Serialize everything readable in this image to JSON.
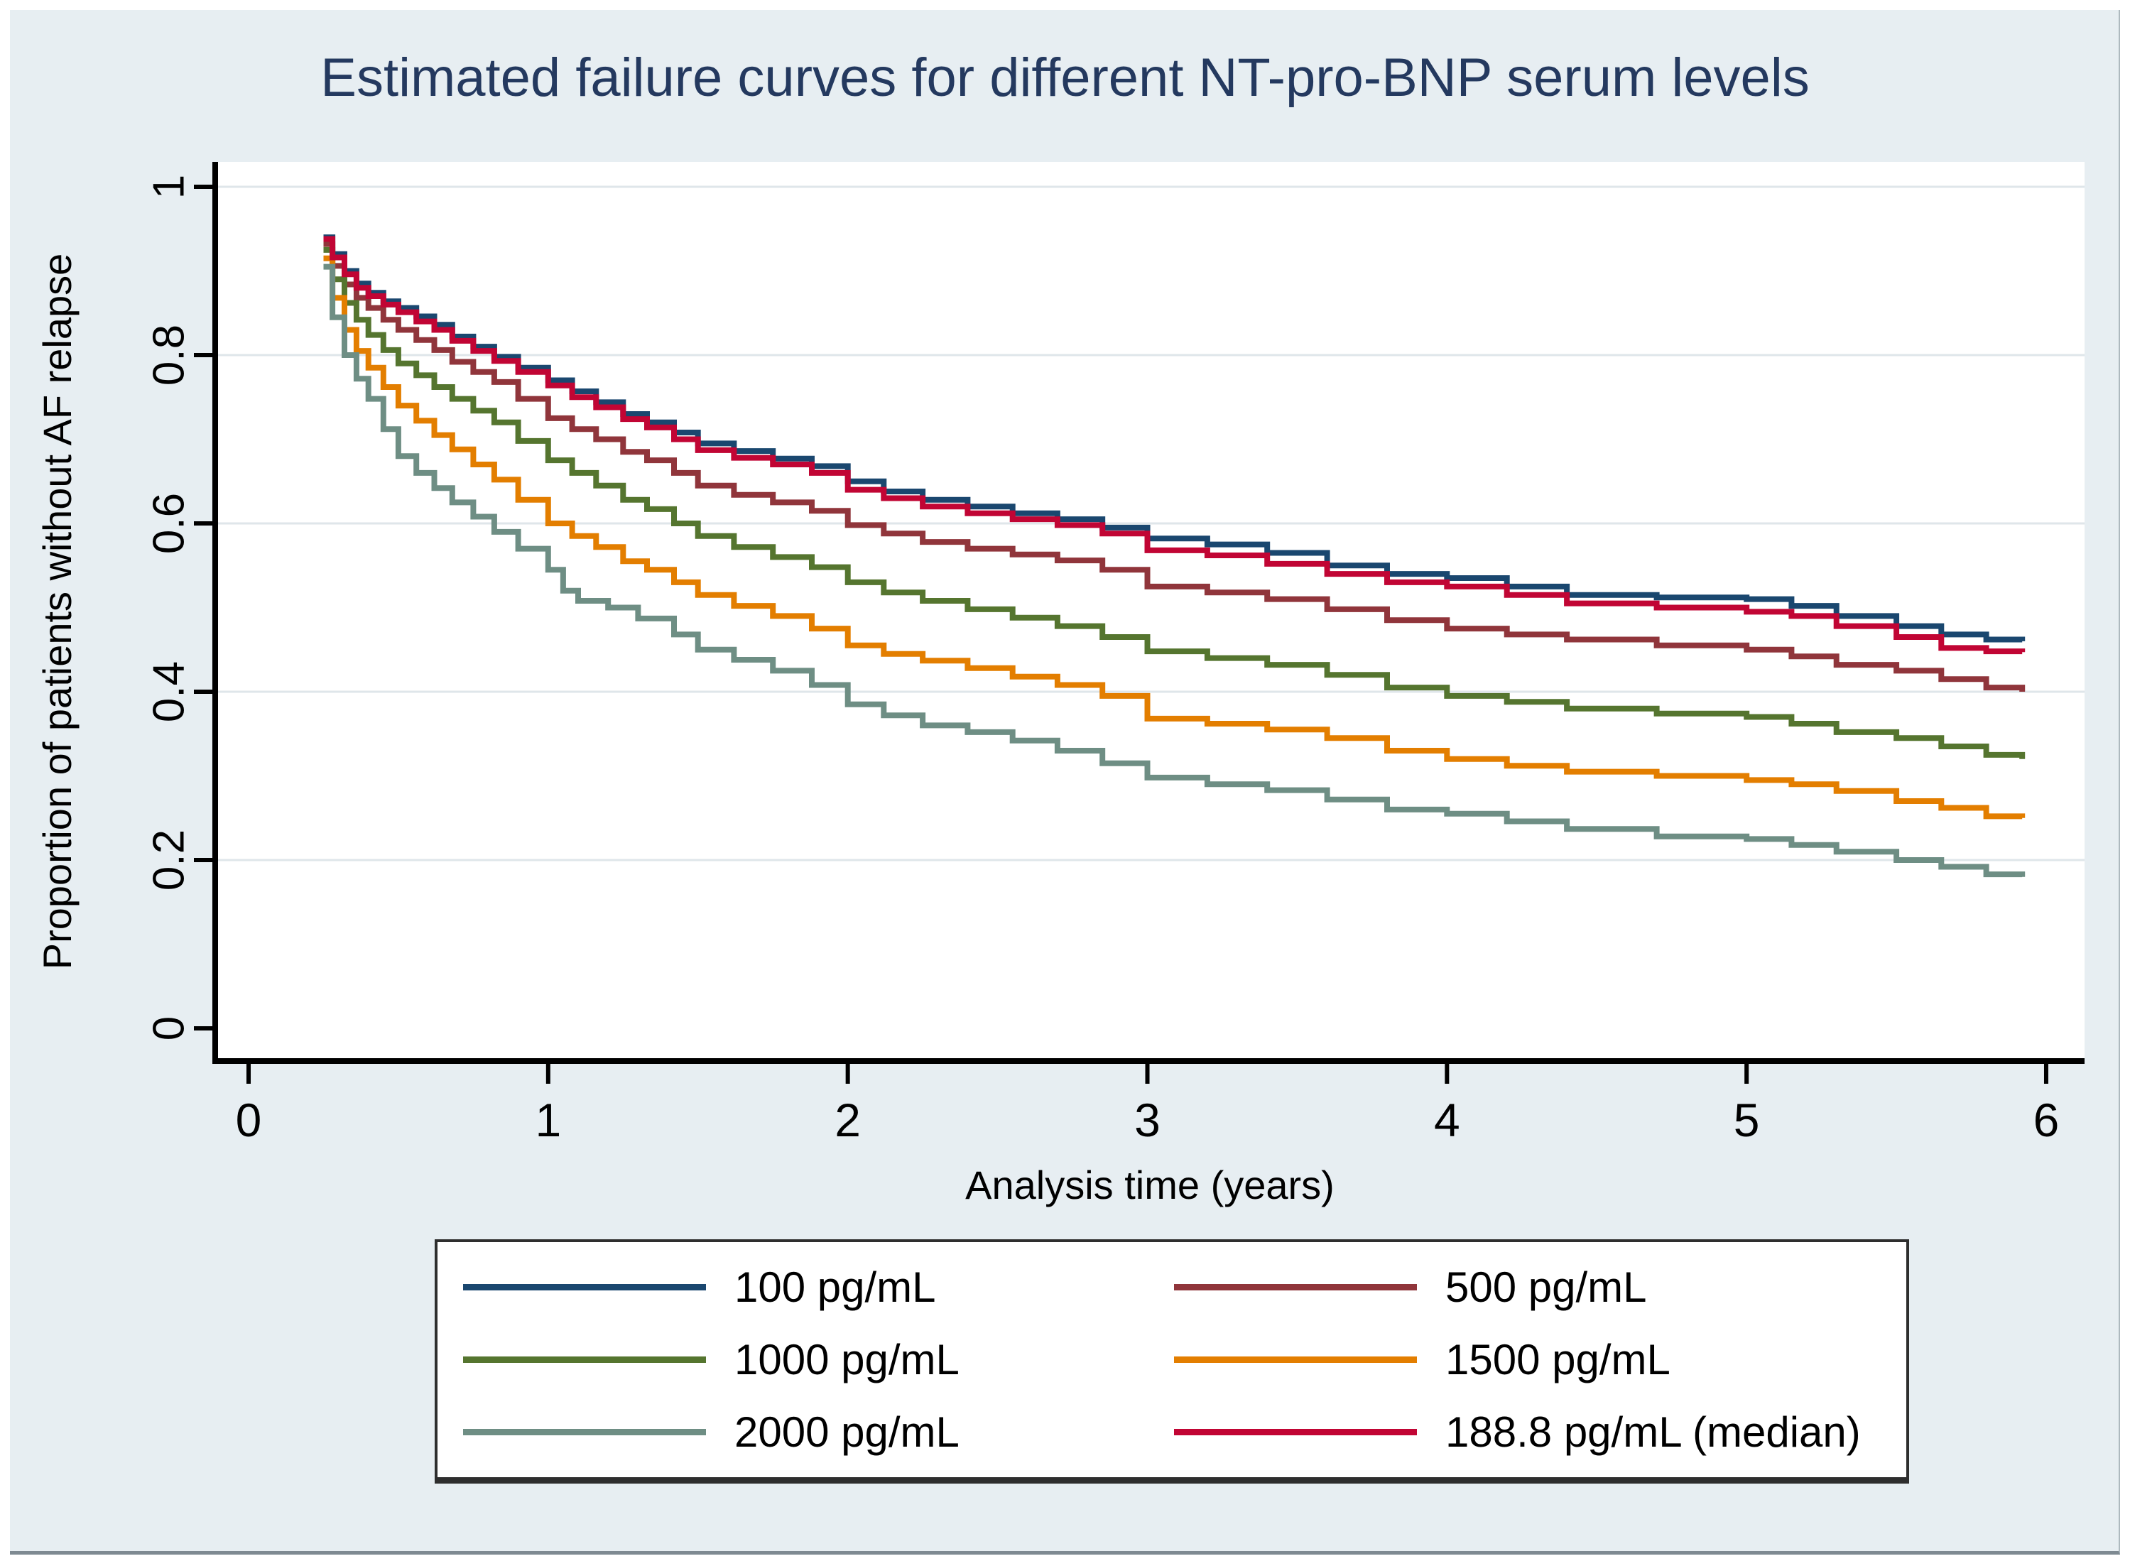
{
  "figure": {
    "background_color": "#e7eef2",
    "outer_border_color": "#7e8a92"
  },
  "chart_data": {
    "type": "line",
    "subtype": "kaplan-meier-step",
    "title": "Estimated failure curves for different NT-pro-BNP serum levels",
    "title_color": "#24395f",
    "xlabel": "Analysis time (years)",
    "ylabel": "Proportion of patients without AF relapse",
    "xlim": [
      0,
      6
    ],
    "ylim": [
      0,
      1
    ],
    "xticks": [
      0,
      1,
      2,
      3,
      4,
      5,
      6
    ],
    "yticks": [
      0,
      0.2,
      0.4,
      0.6,
      0.8,
      1
    ],
    "ytick_labels": [
      "0",
      "0.2",
      "0.4",
      "0.6",
      "0.8",
      "1"
    ],
    "grid": "horizontal",
    "gridline_values": [
      0.2,
      0.4,
      0.6,
      0.8,
      1
    ],
    "grid_color": "#dfe6ea",
    "axis_color": "#000000",
    "plot_bg": "#ffffff",
    "legend_position": "bottom-box",
    "legend_columns": 2,
    "series": [
      {
        "name": "100 pg/mL",
        "color": "#1a476f",
        "points": [
          [
            0.25,
            0.94
          ],
          [
            0.28,
            0.92
          ],
          [
            0.32,
            0.9
          ],
          [
            0.36,
            0.885
          ],
          [
            0.4,
            0.874
          ],
          [
            0.45,
            0.864
          ],
          [
            0.5,
            0.856
          ],
          [
            0.56,
            0.846
          ],
          [
            0.62,
            0.836
          ],
          [
            0.68,
            0.822
          ],
          [
            0.75,
            0.81
          ],
          [
            0.82,
            0.798
          ],
          [
            0.9,
            0.785
          ],
          [
            1.0,
            0.77
          ],
          [
            1.08,
            0.757
          ],
          [
            1.16,
            0.744
          ],
          [
            1.25,
            0.73
          ],
          [
            1.33,
            0.72
          ],
          [
            1.42,
            0.708
          ],
          [
            1.5,
            0.695
          ],
          [
            1.62,
            0.686
          ],
          [
            1.75,
            0.677
          ],
          [
            1.88,
            0.668
          ],
          [
            2.0,
            0.65
          ],
          [
            2.12,
            0.638
          ],
          [
            2.25,
            0.628
          ],
          [
            2.4,
            0.62
          ],
          [
            2.55,
            0.612
          ],
          [
            2.7,
            0.605
          ],
          [
            2.85,
            0.595
          ],
          [
            3.0,
            0.582
          ],
          [
            3.2,
            0.575
          ],
          [
            3.4,
            0.565
          ],
          [
            3.6,
            0.55
          ],
          [
            3.8,
            0.54
          ],
          [
            4.0,
            0.535
          ],
          [
            4.2,
            0.525
          ],
          [
            4.4,
            0.515
          ],
          [
            4.7,
            0.512
          ],
          [
            5.0,
            0.51
          ],
          [
            5.15,
            0.502
          ],
          [
            5.3,
            0.49
          ],
          [
            5.5,
            0.478
          ],
          [
            5.65,
            0.468
          ],
          [
            5.8,
            0.462
          ],
          [
            5.92,
            0.46
          ]
        ]
      },
      {
        "name": "500 pg/mL",
        "color": "#90353b",
        "points": [
          [
            0.25,
            0.932
          ],
          [
            0.28,
            0.906
          ],
          [
            0.32,
            0.884
          ],
          [
            0.36,
            0.868
          ],
          [
            0.4,
            0.856
          ],
          [
            0.45,
            0.842
          ],
          [
            0.5,
            0.83
          ],
          [
            0.56,
            0.818
          ],
          [
            0.62,
            0.806
          ],
          [
            0.68,
            0.792
          ],
          [
            0.75,
            0.78
          ],
          [
            0.82,
            0.768
          ],
          [
            0.9,
            0.748
          ],
          [
            1.0,
            0.725
          ],
          [
            1.08,
            0.712
          ],
          [
            1.16,
            0.7
          ],
          [
            1.25,
            0.685
          ],
          [
            1.33,
            0.675
          ],
          [
            1.42,
            0.66
          ],
          [
            1.5,
            0.645
          ],
          [
            1.62,
            0.634
          ],
          [
            1.75,
            0.625
          ],
          [
            1.88,
            0.615
          ],
          [
            2.0,
            0.598
          ],
          [
            2.12,
            0.588
          ],
          [
            2.25,
            0.578
          ],
          [
            2.4,
            0.57
          ],
          [
            2.55,
            0.563
          ],
          [
            2.7,
            0.556
          ],
          [
            2.85,
            0.545
          ],
          [
            3.0,
            0.525
          ],
          [
            3.2,
            0.518
          ],
          [
            3.4,
            0.51
          ],
          [
            3.6,
            0.498
          ],
          [
            3.8,
            0.485
          ],
          [
            4.0,
            0.475
          ],
          [
            4.2,
            0.468
          ],
          [
            4.4,
            0.462
          ],
          [
            4.7,
            0.455
          ],
          [
            5.0,
            0.45
          ],
          [
            5.15,
            0.442
          ],
          [
            5.3,
            0.432
          ],
          [
            5.5,
            0.425
          ],
          [
            5.65,
            0.415
          ],
          [
            5.8,
            0.405
          ],
          [
            5.92,
            0.4
          ]
        ]
      },
      {
        "name": "1000 pg/mL",
        "color": "#55752f",
        "points": [
          [
            0.25,
            0.925
          ],
          [
            0.28,
            0.89
          ],
          [
            0.32,
            0.862
          ],
          [
            0.36,
            0.842
          ],
          [
            0.4,
            0.824
          ],
          [
            0.45,
            0.806
          ],
          [
            0.5,
            0.79
          ],
          [
            0.56,
            0.776
          ],
          [
            0.62,
            0.762
          ],
          [
            0.68,
            0.748
          ],
          [
            0.75,
            0.734
          ],
          [
            0.82,
            0.72
          ],
          [
            0.9,
            0.698
          ],
          [
            1.0,
            0.675
          ],
          [
            1.08,
            0.66
          ],
          [
            1.16,
            0.645
          ],
          [
            1.25,
            0.628
          ],
          [
            1.33,
            0.617
          ],
          [
            1.42,
            0.6
          ],
          [
            1.5,
            0.585
          ],
          [
            1.62,
            0.572
          ],
          [
            1.75,
            0.56
          ],
          [
            1.88,
            0.548
          ],
          [
            2.0,
            0.53
          ],
          [
            2.12,
            0.518
          ],
          [
            2.25,
            0.508
          ],
          [
            2.4,
            0.498
          ],
          [
            2.55,
            0.488
          ],
          [
            2.7,
            0.478
          ],
          [
            2.85,
            0.465
          ],
          [
            3.0,
            0.448
          ],
          [
            3.2,
            0.44
          ],
          [
            3.4,
            0.432
          ],
          [
            3.6,
            0.42
          ],
          [
            3.8,
            0.405
          ],
          [
            4.0,
            0.395
          ],
          [
            4.2,
            0.388
          ],
          [
            4.4,
            0.38
          ],
          [
            4.7,
            0.374
          ],
          [
            5.0,
            0.37
          ],
          [
            5.15,
            0.362
          ],
          [
            5.3,
            0.352
          ],
          [
            5.5,
            0.345
          ],
          [
            5.65,
            0.335
          ],
          [
            5.8,
            0.325
          ],
          [
            5.92,
            0.32
          ]
        ]
      },
      {
        "name": "1500 pg/mL",
        "color": "#e37e00",
        "points": [
          [
            0.25,
            0.915
          ],
          [
            0.28,
            0.868
          ],
          [
            0.32,
            0.83
          ],
          [
            0.36,
            0.805
          ],
          [
            0.4,
            0.785
          ],
          [
            0.45,
            0.762
          ],
          [
            0.5,
            0.74
          ],
          [
            0.56,
            0.722
          ],
          [
            0.62,
            0.705
          ],
          [
            0.68,
            0.688
          ],
          [
            0.75,
            0.67
          ],
          [
            0.82,
            0.652
          ],
          [
            0.9,
            0.628
          ],
          [
            1.0,
            0.6
          ],
          [
            1.08,
            0.585
          ],
          [
            1.16,
            0.572
          ],
          [
            1.25,
            0.555
          ],
          [
            1.33,
            0.545
          ],
          [
            1.42,
            0.53
          ],
          [
            1.5,
            0.515
          ],
          [
            1.62,
            0.502
          ],
          [
            1.75,
            0.49
          ],
          [
            1.88,
            0.475
          ],
          [
            2.0,
            0.455
          ],
          [
            2.12,
            0.445
          ],
          [
            2.25,
            0.437
          ],
          [
            2.4,
            0.428
          ],
          [
            2.55,
            0.418
          ],
          [
            2.7,
            0.408
          ],
          [
            2.85,
            0.395
          ],
          [
            3.0,
            0.368
          ],
          [
            3.2,
            0.362
          ],
          [
            3.4,
            0.355
          ],
          [
            3.6,
            0.345
          ],
          [
            3.8,
            0.33
          ],
          [
            4.0,
            0.32
          ],
          [
            4.2,
            0.312
          ],
          [
            4.4,
            0.305
          ],
          [
            4.7,
            0.3
          ],
          [
            5.0,
            0.295
          ],
          [
            5.15,
            0.29
          ],
          [
            5.3,
            0.282
          ],
          [
            5.5,
            0.27
          ],
          [
            5.65,
            0.262
          ],
          [
            5.8,
            0.252
          ],
          [
            5.92,
            0.25
          ]
        ]
      },
      {
        "name": "2000 pg/mL",
        "color": "#6e8e84",
        "points": [
          [
            0.25,
            0.905
          ],
          [
            0.28,
            0.845
          ],
          [
            0.32,
            0.8
          ],
          [
            0.36,
            0.772
          ],
          [
            0.4,
            0.748
          ],
          [
            0.45,
            0.712
          ],
          [
            0.5,
            0.68
          ],
          [
            0.56,
            0.66
          ],
          [
            0.62,
            0.642
          ],
          [
            0.68,
            0.625
          ],
          [
            0.75,
            0.608
          ],
          [
            0.82,
            0.59
          ],
          [
            0.9,
            0.57
          ],
          [
            1.0,
            0.545
          ],
          [
            1.05,
            0.52
          ],
          [
            1.1,
            0.508
          ],
          [
            1.2,
            0.5
          ],
          [
            1.3,
            0.487
          ],
          [
            1.42,
            0.468
          ],
          [
            1.5,
            0.45
          ],
          [
            1.62,
            0.438
          ],
          [
            1.75,
            0.425
          ],
          [
            1.88,
            0.408
          ],
          [
            2.0,
            0.385
          ],
          [
            2.12,
            0.372
          ],
          [
            2.25,
            0.36
          ],
          [
            2.4,
            0.352
          ],
          [
            2.55,
            0.342
          ],
          [
            2.7,
            0.33
          ],
          [
            2.85,
            0.315
          ],
          [
            3.0,
            0.298
          ],
          [
            3.2,
            0.29
          ],
          [
            3.4,
            0.283
          ],
          [
            3.6,
            0.272
          ],
          [
            3.8,
            0.26
          ],
          [
            4.0,
            0.255
          ],
          [
            4.2,
            0.246
          ],
          [
            4.4,
            0.237
          ],
          [
            4.7,
            0.228
          ],
          [
            5.0,
            0.225
          ],
          [
            5.15,
            0.218
          ],
          [
            5.3,
            0.21
          ],
          [
            5.5,
            0.2
          ],
          [
            5.65,
            0.192
          ],
          [
            5.8,
            0.183
          ],
          [
            5.92,
            0.18
          ]
        ]
      },
      {
        "name": "188.8 pg/mL (median)",
        "color": "#c10534",
        "points": [
          [
            0.25,
            0.938
          ],
          [
            0.28,
            0.916
          ],
          [
            0.32,
            0.896
          ],
          [
            0.36,
            0.88
          ],
          [
            0.4,
            0.87
          ],
          [
            0.45,
            0.86
          ],
          [
            0.5,
            0.851
          ],
          [
            0.56,
            0.84
          ],
          [
            0.62,
            0.83
          ],
          [
            0.68,
            0.817
          ],
          [
            0.75,
            0.805
          ],
          [
            0.82,
            0.793
          ],
          [
            0.9,
            0.78
          ],
          [
            1.0,
            0.764
          ],
          [
            1.08,
            0.75
          ],
          [
            1.16,
            0.738
          ],
          [
            1.25,
            0.724
          ],
          [
            1.33,
            0.714
          ],
          [
            1.42,
            0.7
          ],
          [
            1.5,
            0.687
          ],
          [
            1.62,
            0.678
          ],
          [
            1.75,
            0.67
          ],
          [
            1.88,
            0.66
          ],
          [
            2.0,
            0.64
          ],
          [
            2.12,
            0.63
          ],
          [
            2.25,
            0.62
          ],
          [
            2.4,
            0.612
          ],
          [
            2.55,
            0.605
          ],
          [
            2.7,
            0.598
          ],
          [
            2.85,
            0.588
          ],
          [
            3.0,
            0.568
          ],
          [
            3.2,
            0.562
          ],
          [
            3.4,
            0.552
          ],
          [
            3.6,
            0.54
          ],
          [
            3.8,
            0.53
          ],
          [
            4.0,
            0.525
          ],
          [
            4.2,
            0.515
          ],
          [
            4.4,
            0.505
          ],
          [
            4.7,
            0.5
          ],
          [
            5.0,
            0.495
          ],
          [
            5.15,
            0.49
          ],
          [
            5.3,
            0.478
          ],
          [
            5.5,
            0.465
          ],
          [
            5.65,
            0.452
          ],
          [
            5.8,
            0.448
          ],
          [
            5.92,
            0.447
          ]
        ]
      }
    ]
  }
}
